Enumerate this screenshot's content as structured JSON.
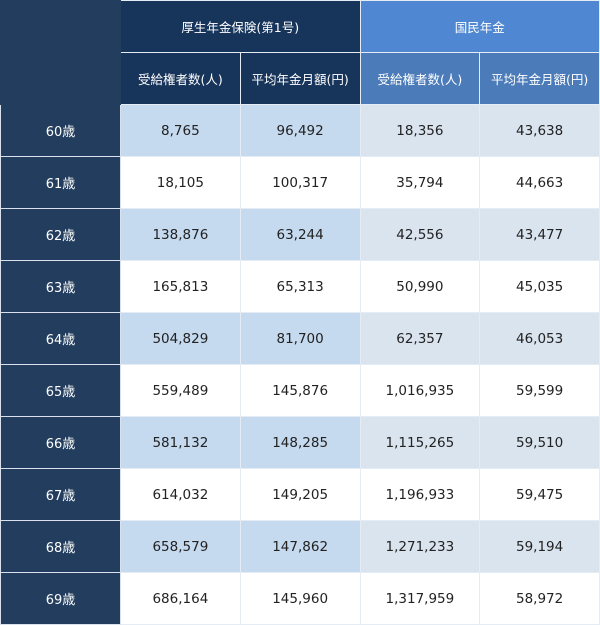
{
  "table": {
    "groups": [
      "厚生年金保険(第1号)",
      "国民年金"
    ],
    "subheaders": [
      "受給権者数(人)",
      "平均年金月額(円)",
      "受給権者数(人)",
      "平均年金月額(円)"
    ],
    "rows": [
      {
        "age": "60歳",
        "values": [
          "8,765",
          "96,492",
          "18,356",
          "43,638"
        ]
      },
      {
        "age": "61歳",
        "values": [
          "18,105",
          "100,317",
          "35,794",
          "44,663"
        ]
      },
      {
        "age": "62歳",
        "values": [
          "138,876",
          "63,244",
          "42,556",
          "43,477"
        ]
      },
      {
        "age": "63歳",
        "values": [
          "165,813",
          "65,313",
          "50,990",
          "45,035"
        ]
      },
      {
        "age": "64歳",
        "values": [
          "504,829",
          "81,700",
          "62,357",
          "46,053"
        ]
      },
      {
        "age": "65歳",
        "values": [
          "559,489",
          "145,876",
          "1,016,935",
          "59,599"
        ]
      },
      {
        "age": "66歳",
        "values": [
          "581,132",
          "148,285",
          "1,115,265",
          "59,510"
        ]
      },
      {
        "age": "67歳",
        "values": [
          "614,032",
          "149,205",
          "1,196,933",
          "59,475"
        ]
      },
      {
        "age": "68歳",
        "values": [
          "658,579",
          "147,862",
          "1,271,233",
          "59,194"
        ]
      },
      {
        "age": "69歳",
        "values": [
          "686,164",
          "145,960",
          "1,317,959",
          "58,972"
        ]
      }
    ]
  },
  "colors": {
    "stub": "#223d5e",
    "kosei_header": "#17345a",
    "kokumin_header": "#4f87d2",
    "kokumin_subheader": "#4b7bb8",
    "kosei_band": "#c5d9ef",
    "kokumin_band": "#dae4ef"
  }
}
